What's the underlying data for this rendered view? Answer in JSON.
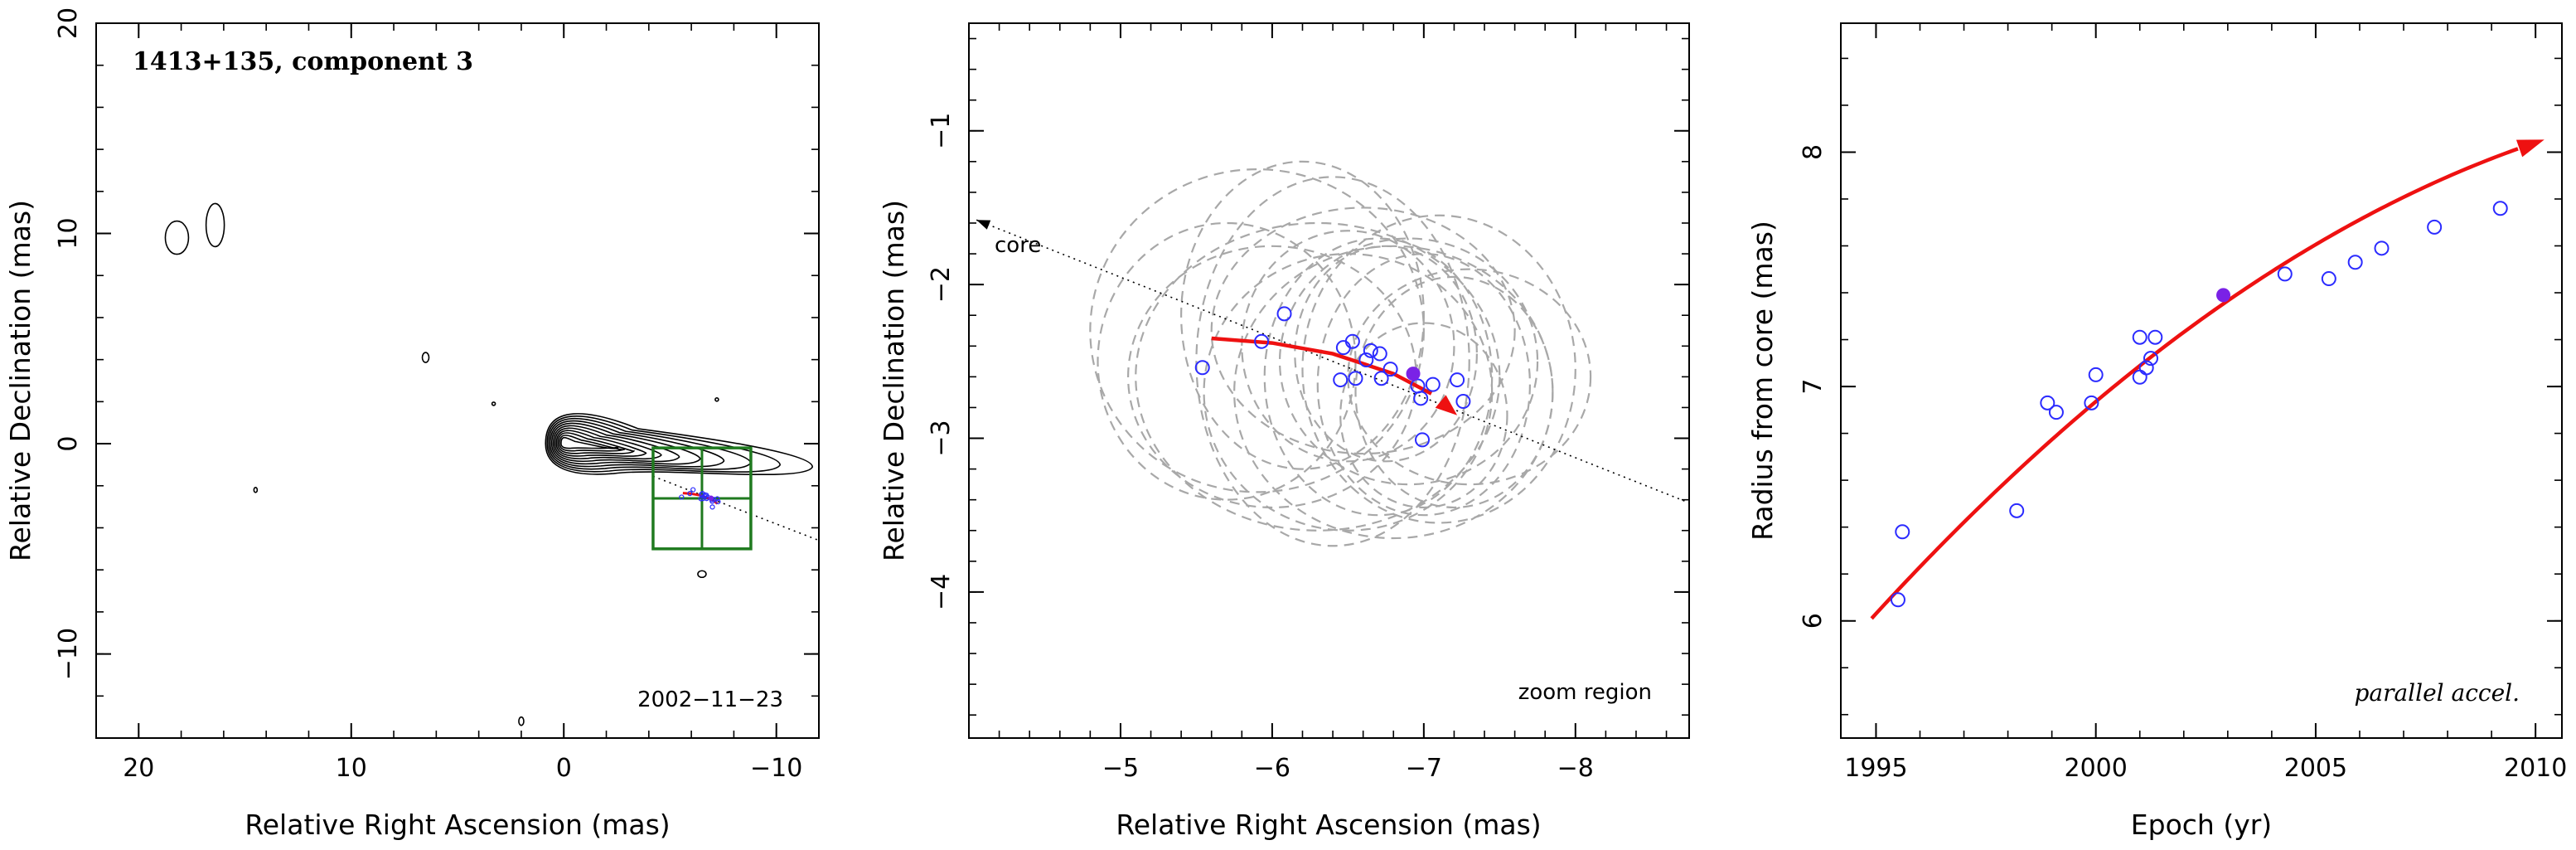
{
  "colors": {
    "axis": "#000000",
    "contour": "#000000",
    "ellipse": "#a8a8a8",
    "open_point": "#2b2bff",
    "filled_point": "#7a22e6",
    "fit_curve": "#ee1111",
    "zoom_box": "#1f7a1f"
  },
  "chart_data": [
    {
      "type": "contour",
      "panel": "map",
      "title": "1413+135, component 3",
      "epoch_label": "2002−11−23",
      "xlabel": "Relative Right Ascension (mas)",
      "ylabel": "Relative Declination (mas)",
      "xlim": [
        22,
        -12
      ],
      "ylim": [
        -14,
        20
      ],
      "xticks": [
        20,
        10,
        0,
        -10
      ],
      "xtick_labels": [
        "20",
        "10",
        "0",
        "−10"
      ],
      "yticks": [
        -10,
        0,
        10,
        20
      ],
      "ytick_labels": [
        "−10",
        "0",
        "10",
        "20"
      ],
      "core_position": [
        0,
        0
      ],
      "zoom_region": {
        "ra_range": [
          -4.2,
          -8.8
        ],
        "dec_range": [
          -0.2,
          -5.0
        ]
      },
      "jet_direction_line": {
        "from": [
          -4.2,
          -1.55
        ],
        "to": [
          -12,
          -4.6
        ]
      }
    },
    {
      "type": "scatter",
      "panel": "zoom",
      "annotation": "zoom region",
      "core_label": "core",
      "xlabel": "Relative Right Ascension (mas)",
      "ylabel": "Relative Declination (mas)",
      "xlim": [
        -4.0,
        -8.75
      ],
      "ylim": [
        -4.95,
        -0.3
      ],
      "xticks": [
        -5,
        -6,
        -7,
        -8
      ],
      "xtick_labels": [
        "−5",
        "−6",
        "−7",
        "−8"
      ],
      "yticks": [
        -1,
        -2,
        -3,
        -4
      ],
      "ytick_labels": [
        "−1",
        "−2",
        "−3",
        "−4"
      ],
      "points": [
        {
          "x": -5.54,
          "y": -2.54
        },
        {
          "x": -5.93,
          "y": -2.37
        },
        {
          "x": -6.08,
          "y": -2.19
        },
        {
          "x": -6.47,
          "y": -2.41
        },
        {
          "x": -6.45,
          "y": -2.62
        },
        {
          "x": -6.53,
          "y": -2.37
        },
        {
          "x": -6.55,
          "y": -2.61
        },
        {
          "x": -6.62,
          "y": -2.49
        },
        {
          "x": -6.65,
          "y": -2.43
        },
        {
          "x": -6.71,
          "y": -2.45
        },
        {
          "x": -6.72,
          "y": -2.61
        },
        {
          "x": -6.78,
          "y": -2.55
        },
        {
          "x": -6.96,
          "y": -2.66
        },
        {
          "x": -6.98,
          "y": -2.74
        },
        {
          "x": -6.99,
          "y": -3.01
        },
        {
          "x": -7.06,
          "y": -2.65
        },
        {
          "x": -7.22,
          "y": -2.62
        },
        {
          "x": -7.26,
          "y": -2.76
        }
      ],
      "highlight_point": {
        "x": -6.93,
        "y": -2.58
      },
      "fit_curve": [
        [
          -5.6,
          -2.35
        ],
        [
          -6.0,
          -2.38
        ],
        [
          -6.4,
          -2.45
        ],
        [
          -6.8,
          -2.58
        ],
        [
          -7.05,
          -2.71
        ],
        [
          -7.22,
          -2.85
        ]
      ],
      "ellipses": [
        {
          "cx": -5.7,
          "cy": -2.5,
          "rx": 0.85,
          "ry": 0.9
        },
        {
          "cx": -5.9,
          "cy": -2.3,
          "rx": 1.1,
          "ry": 1.05
        },
        {
          "cx": -6.0,
          "cy": -2.6,
          "rx": 0.95,
          "ry": 0.85
        },
        {
          "cx": -6.2,
          "cy": -2.2,
          "rx": 0.8,
          "ry": 1.0
        },
        {
          "cx": -6.3,
          "cy": -2.6,
          "rx": 1.2,
          "ry": 1.0
        },
        {
          "cx": -6.4,
          "cy": -2.5,
          "rx": 0.9,
          "ry": 1.2
        },
        {
          "cx": -6.5,
          "cy": -2.4,
          "rx": 0.7,
          "ry": 0.75
        },
        {
          "cx": -6.5,
          "cy": -2.7,
          "rx": 0.95,
          "ry": 0.9
        },
        {
          "cx": -6.6,
          "cy": -2.3,
          "rx": 1.0,
          "ry": 0.8
        },
        {
          "cx": -6.7,
          "cy": -2.6,
          "rx": 0.75,
          "ry": 0.9
        },
        {
          "cx": -6.75,
          "cy": -2.45,
          "rx": 0.6,
          "ry": 0.7
        },
        {
          "cx": -6.8,
          "cy": -2.7,
          "rx": 1.05,
          "ry": 0.95
        },
        {
          "cx": -6.9,
          "cy": -2.5,
          "rx": 0.85,
          "ry": 0.8
        },
        {
          "cx": -7.0,
          "cy": -2.65,
          "rx": 0.7,
          "ry": 0.85
        },
        {
          "cx": -7.1,
          "cy": -2.55,
          "rx": 0.9,
          "ry": 1.0
        },
        {
          "cx": -7.2,
          "cy": -2.7,
          "rx": 0.65,
          "ry": 0.75
        },
        {
          "cx": -7.3,
          "cy": -2.6,
          "rx": 0.8,
          "ry": 0.7
        },
        {
          "cx": -7.0,
          "cy": -2.85,
          "rx": 0.55,
          "ry": 0.6
        }
      ],
      "core_direction_line": {
        "from": [
          -4.05,
          -1.58
        ],
        "to": [
          -8.75,
          -3.42
        ]
      }
    },
    {
      "type": "scatter",
      "panel": "radius",
      "annotation": "parallel accel.",
      "xlabel": "Epoch (yr)",
      "ylabel": "Radius from core (mas)",
      "xlim": [
        1994.2,
        2010.6
      ],
      "ylim": [
        5.5,
        8.55
      ],
      "xticks": [
        1995,
        2000,
        2005,
        2010
      ],
      "xtick_labels": [
        "1995",
        "2000",
        "2005",
        "2010"
      ],
      "yticks": [
        6,
        7,
        8
      ],
      "ytick_labels": [
        "6",
        "7",
        "8"
      ],
      "points": [
        {
          "x": 1995.5,
          "y": 6.09
        },
        {
          "x": 1995.6,
          "y": 6.38
        },
        {
          "x": 1998.2,
          "y": 6.47
        },
        {
          "x": 1998.9,
          "y": 6.93
        },
        {
          "x": 1999.1,
          "y": 6.89
        },
        {
          "x": 1999.9,
          "y": 6.93
        },
        {
          "x": 2000.0,
          "y": 7.05
        },
        {
          "x": 2001.0,
          "y": 7.04
        },
        {
          "x": 2001.0,
          "y": 7.21
        },
        {
          "x": 2001.15,
          "y": 7.08
        },
        {
          "x": 2001.25,
          "y": 7.12
        },
        {
          "x": 2001.35,
          "y": 7.21
        },
        {
          "x": 2004.3,
          "y": 7.48
        },
        {
          "x": 2005.3,
          "y": 7.46
        },
        {
          "x": 2005.9,
          "y": 7.53
        },
        {
          "x": 2006.5,
          "y": 7.59
        },
        {
          "x": 2007.7,
          "y": 7.68
        },
        {
          "x": 2009.2,
          "y": 7.76
        }
      ],
      "highlight_point": {
        "x": 2002.9,
        "y": 7.39
      },
      "fit_curve": {
        "t0": 2002.5,
        "a": 7.3,
        "b": 0.134,
        "c": -0.0047,
        "x_start": 1994.9,
        "x_end": 2010.2
      }
    }
  ]
}
